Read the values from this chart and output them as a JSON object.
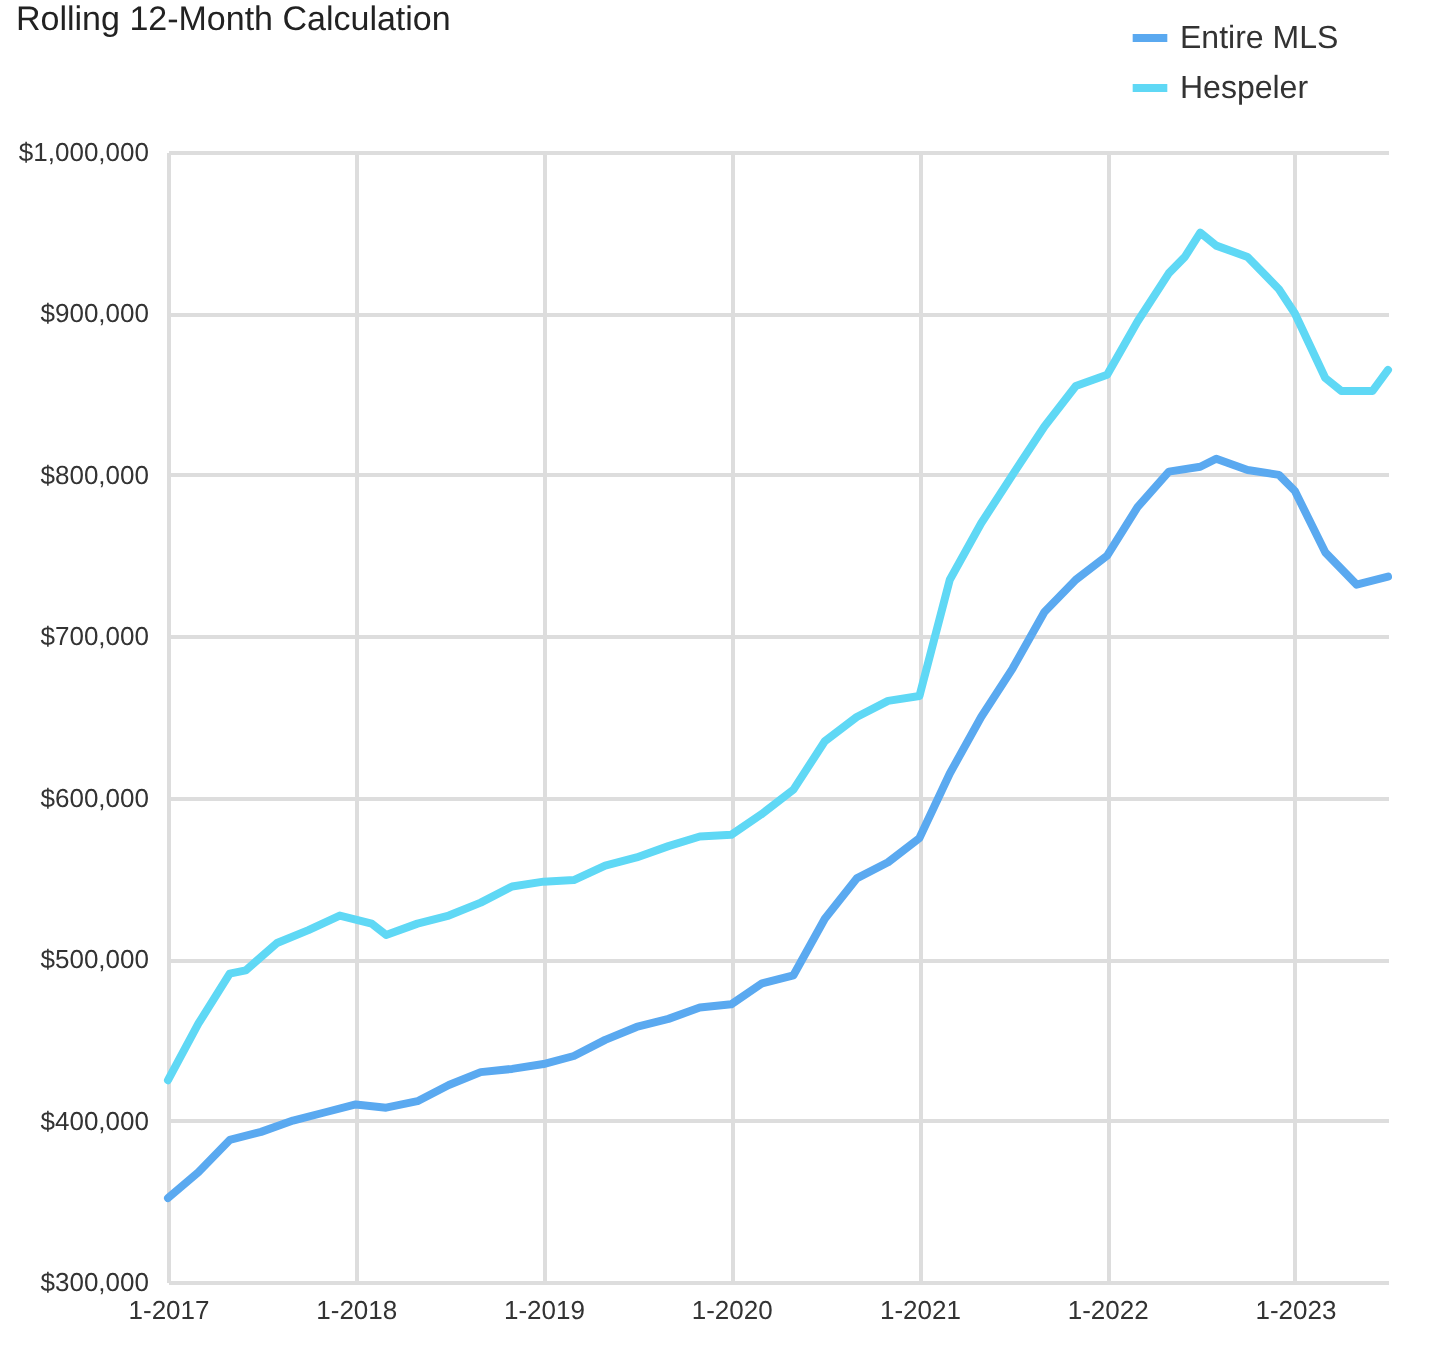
{
  "chart_data": {
    "type": "line",
    "title": "Rolling 12-Month Calculation",
    "xlim": [
      "2017-01",
      "2023-07"
    ],
    "xticks": [
      {
        "value": "2017-01",
        "label": "1-2017"
      },
      {
        "value": "2018-01",
        "label": "1-2018"
      },
      {
        "value": "2019-01",
        "label": "1-2019"
      },
      {
        "value": "2020-01",
        "label": "1-2020"
      },
      {
        "value": "2021-01",
        "label": "1-2021"
      },
      {
        "value": "2022-01",
        "label": "1-2022"
      },
      {
        "value": "2023-01",
        "label": "1-2023"
      }
    ],
    "ylim": [
      300000,
      1000000
    ],
    "yticks": [
      {
        "value": 300000,
        "label": "$300,000"
      },
      {
        "value": 400000,
        "label": "$400,000"
      },
      {
        "value": 500000,
        "label": "$500,000"
      },
      {
        "value": 600000,
        "label": "$600,000"
      },
      {
        "value": 700000,
        "label": "$700,000"
      },
      {
        "value": 800000,
        "label": "$800,000"
      },
      {
        "value": 900000,
        "label": "$900,000"
      },
      {
        "value": 1000000,
        "label": "$1,000,000"
      }
    ],
    "grid": true,
    "legend": "top right",
    "marker": "none",
    "line_style": "solid",
    "series": [
      {
        "name": "Entire MLS",
        "color": "#5aa9f0",
        "x": [
          "2017-01",
          "2017-03",
          "2017-05",
          "2017-07",
          "2017-09",
          "2017-11",
          "2018-01",
          "2018-03",
          "2018-05",
          "2018-07",
          "2018-09",
          "2018-11",
          "2019-01",
          "2019-03",
          "2019-05",
          "2019-07",
          "2019-09",
          "2019-11",
          "2020-01",
          "2020-03",
          "2020-05",
          "2020-07",
          "2020-09",
          "2020-11",
          "2021-01",
          "2021-03",
          "2021-05",
          "2021-07",
          "2021-09",
          "2021-11",
          "2022-01",
          "2022-03",
          "2022-05",
          "2022-07",
          "2022-08",
          "2022-10",
          "2022-12",
          "2023-01",
          "2023-03",
          "2023-05",
          "2023-07"
        ],
        "values": [
          352000,
          368000,
          388000,
          393000,
          400000,
          405000,
          410000,
          408000,
          412000,
          422000,
          430000,
          432000,
          435000,
          440000,
          450000,
          458000,
          463000,
          470000,
          472000,
          485000,
          490000,
          525000,
          550000,
          560000,
          575000,
          615000,
          650000,
          680000,
          715000,
          735000,
          750000,
          780000,
          802000,
          805000,
          810000,
          803000,
          800000,
          790000,
          752000,
          732000,
          737000
        ]
      },
      {
        "name": "Hespeler",
        "color": "#5fd8f5",
        "x": [
          "2017-01",
          "2017-03",
          "2017-05",
          "2017-06",
          "2017-08",
          "2017-10",
          "2017-12",
          "2018-02",
          "2018-03",
          "2018-05",
          "2018-07",
          "2018-09",
          "2018-11",
          "2019-01",
          "2019-03",
          "2019-05",
          "2019-07",
          "2019-09",
          "2019-11",
          "2020-01",
          "2020-03",
          "2020-05",
          "2020-07",
          "2020-09",
          "2020-11",
          "2021-01",
          "2021-03",
          "2021-05",
          "2021-07",
          "2021-09",
          "2021-11",
          "2022-01",
          "2022-03",
          "2022-05",
          "2022-06",
          "2022-07",
          "2022-08",
          "2022-10",
          "2022-12",
          "2023-01",
          "2023-03",
          "2023-04",
          "2023-06",
          "2023-07"
        ],
        "values": [
          425000,
          460000,
          491000,
          493000,
          510000,
          518000,
          527000,
          522000,
          515000,
          522000,
          527000,
          535000,
          545000,
          548000,
          549000,
          558000,
          563000,
          570000,
          576000,
          577000,
          590000,
          605000,
          635000,
          650000,
          660000,
          663000,
          735000,
          770000,
          800000,
          830000,
          855000,
          862000,
          895000,
          925000,
          935000,
          950000,
          942000,
          935000,
          915000,
          900000,
          860000,
          852000,
          852000,
          865000
        ]
      }
    ]
  }
}
